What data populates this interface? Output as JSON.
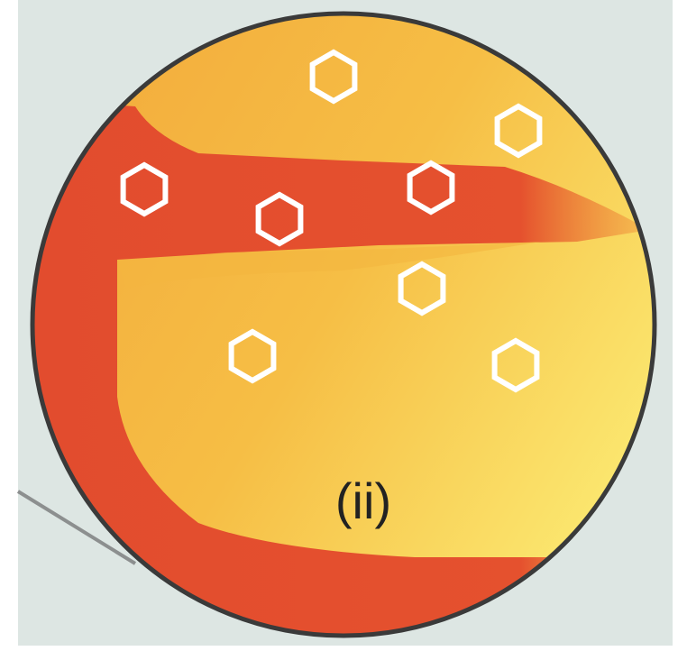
{
  "label": "(ii)"
}
